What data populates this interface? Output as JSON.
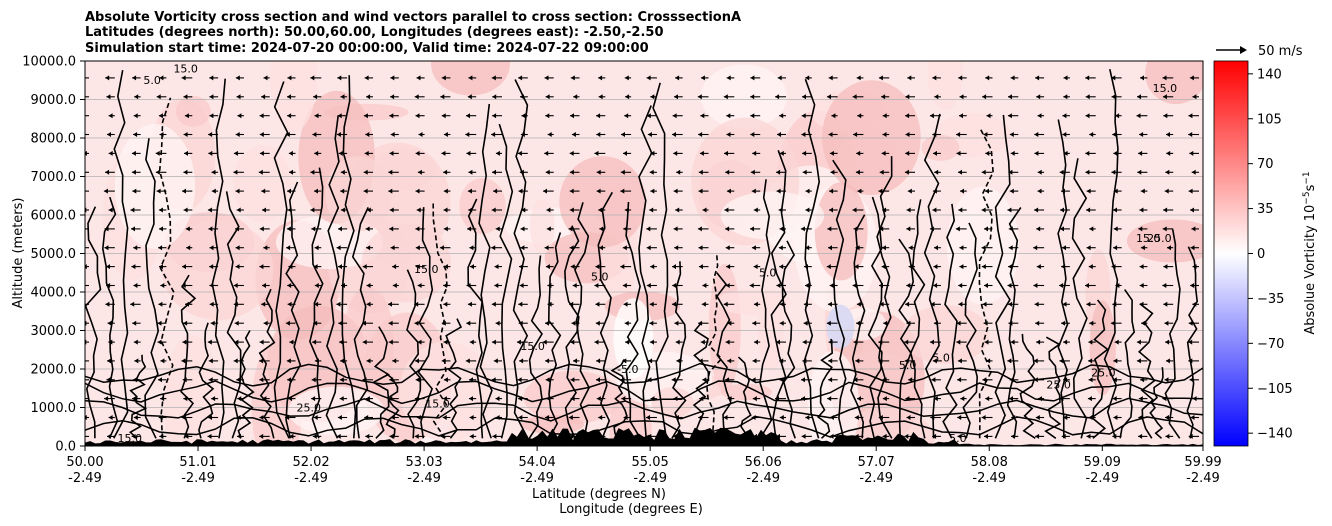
{
  "chart_data": {
    "type": "contour",
    "title_lines": [
      "Absolute Vorticity cross section and wind vectors parallel to cross section: CrosssectionA",
      "Latitudes (degrees north): 50.00,60.00, Longitudes (degrees east): -2.50,-2.50",
      "Simulation start time: 2024-07-20 00:00:00, Valid time: 2024-07-22 09:00:00"
    ],
    "ylabel": "Altitude (meters)",
    "xlabel_lat": "Latitude (degrees N)",
    "xlabel_lon": "Longitude (degrees E)",
    "y_ticks": [
      "0.0",
      "1000.0",
      "2000.0",
      "3000.0",
      "4000.0",
      "5000.0",
      "6000.0",
      "7000.0",
      "8000.0",
      "9000.0",
      "10000.0"
    ],
    "ylim": [
      0,
      10000
    ],
    "x_ticks_lat": [
      "50.00",
      "51.01",
      "52.02",
      "53.03",
      "54.04",
      "55.05",
      "56.06",
      "57.07",
      "58.08",
      "59.09",
      "59.99"
    ],
    "x_ticks_lon": [
      "-2.49",
      "-2.49",
      "-2.49",
      "-2.49",
      "-2.49",
      "-2.49",
      "-2.49",
      "-2.49",
      "-2.49",
      "-2.49",
      "-2.49"
    ],
    "xlim": [
      50.0,
      59.99
    ],
    "colorbar": {
      "label": "Absolue Vorticity 10",
      "label_sup": "−5",
      "label_s": "s",
      "label_sup2": "−1",
      "ticks": [
        "140",
        "105",
        "70",
        "35",
        "0",
        "−35",
        "−70",
        "−105",
        "−140"
      ],
      "range": [
        -150,
        150
      ],
      "colormap": [
        "#0000ff",
        "#ffffff",
        "#ff0000"
      ]
    },
    "quiver_key": "50 m/s",
    "contour_levels_labeled": [
      "-5.0",
      "5.0",
      "15.0",
      "25.0"
    ],
    "contour_label_samples": [
      {
        "text": "15.0",
        "lat": 53.05,
        "alt": 4500
      },
      {
        "text": "5.0",
        "lat": 54.6,
        "alt": 4300
      },
      {
        "text": "15.0",
        "lat": 54.0,
        "alt": 2500
      },
      {
        "text": "-5.0",
        "lat": 54.85,
        "alt": 1900
      },
      {
        "text": "5.0",
        "lat": 56.1,
        "alt": 4400
      },
      {
        "text": "5.0",
        "lat": 57.35,
        "alt": 2000
      },
      {
        "text": "5.0",
        "lat": 57.65,
        "alt": 2200
      },
      {
        "text": "15.0",
        "lat": 59.5,
        "alt": 5300
      },
      {
        "text": "25.0",
        "lat": 58.7,
        "alt": 1500
      },
      {
        "text": "25.0",
        "lat": 59.1,
        "alt": 1800
      },
      {
        "text": "15.0",
        "lat": 53.15,
        "alt": 1000
      },
      {
        "text": "25.0",
        "lat": 52.0,
        "alt": 900
      },
      {
        "text": "5.0",
        "lat": 50.6,
        "alt": 9400
      },
      {
        "text": "15.0",
        "lat": 50.9,
        "alt": 9700
      },
      {
        "text": "15.0",
        "lat": 59.65,
        "alt": 9200
      },
      {
        "text": "25.0",
        "lat": 59.6,
        "alt": 5300
      },
      {
        "text": "5.0",
        "lat": 57.8,
        "alt": 100
      },
      {
        "text": "15.0",
        "lat": 50.4,
        "alt": 100
      }
    ]
  },
  "colors": {
    "field_base": "#fde6e6",
    "ground": "#000000",
    "contour": "#000000"
  }
}
